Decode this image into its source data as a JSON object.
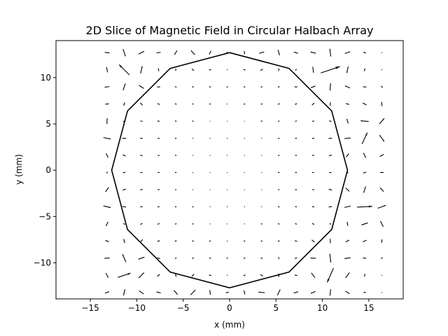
{
  "chart_data": {
    "type": "quiver",
    "title": "2D Slice of Magnetic Field in Circular Halbach Array",
    "xlabel": "x (mm)",
    "ylabel": "y (mm)",
    "xlim": [
      -18.7,
      18.7
    ],
    "ylim": [
      -13.9,
      14.0
    ],
    "xticks": [
      -15,
      -10,
      -5,
      0,
      5,
      10,
      15
    ],
    "yticks": [
      -10,
      -5,
      0,
      5,
      10
    ],
    "xtick_labels": [
      "−15",
      "−10",
      "−5",
      "0",
      "5",
      "10",
      "15"
    ],
    "ytick_labels": [
      "−10",
      "−5",
      "0",
      "5",
      "10"
    ],
    "grid": false,
    "legend": "none",
    "colors": {
      "arrows": "#000000",
      "outline": "#000000",
      "axes": "#000000",
      "background": "#ffffff"
    },
    "outline": {
      "description": "12-sided magnet ring outline (closed)",
      "x": [
        0.0,
        6.4,
        11.0,
        12.7,
        11.0,
        6.4,
        0.0,
        -6.4,
        -11.0,
        -12.7,
        -11.0,
        -6.4
      ],
      "y": [
        12.7,
        11.0,
        6.4,
        0.0,
        -6.4,
        -11.0,
        -12.7,
        -11.0,
        -6.4,
        0.0,
        6.4,
        11.0
      ]
    },
    "field": {
      "grid_x": {
        "start": -13.2,
        "step": 1.85,
        "count": 17
      },
      "grid_y": {
        "start": -13.2,
        "step": 1.85,
        "count": 15
      },
      "magnet_segments": 12,
      "bore_field_direction_deg": 0,
      "arrow_scale": 1.0
    }
  }
}
